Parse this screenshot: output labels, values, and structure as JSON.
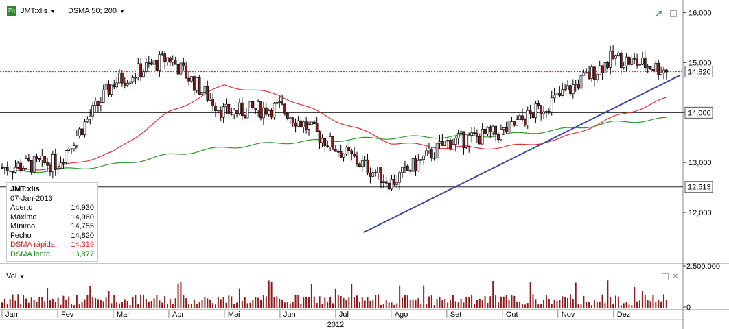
{
  "header": {
    "symbol": "JMT:xlis",
    "indicator": "DSMA 50; 200"
  },
  "info_box": {
    "title": "JMT:xlis",
    "date": "07-Jan-2013",
    "rows": [
      {
        "label": "Aberto",
        "value": "14,930"
      },
      {
        "label": "Máximo",
        "value": "14,960"
      },
      {
        "label": "Mínimo",
        "value": "14,755"
      },
      {
        "label": "Fecho",
        "value": "14,820"
      }
    ],
    "fast": {
      "label": "DSMA rápida",
      "value": "14,319"
    },
    "slow": {
      "label": "DSMA lenta",
      "value": "13,877"
    }
  },
  "volume_header": {
    "label": "Vol"
  },
  "colors": {
    "up": "#ffffff",
    "down": "#8b1a1a",
    "fast_ma": "#e03030",
    "slow_ma": "#2a9a2a",
    "trendline": "#3848a0",
    "last_price_line": "#c02020",
    "volume_bar": "#8b1a1a"
  },
  "chart_data": [
    {
      "type": "candlestick",
      "title": "",
      "y_range": [
        11,
        16.2
      ],
      "y_ticks": [
        "16,000",
        "15,000",
        "14,000",
        "13,000",
        "12,000"
      ],
      "y_tick_values": [
        16,
        15,
        14,
        13,
        12
      ],
      "x_months": [
        "Jan",
        "Fev",
        "Mar",
        "Abr",
        "Mai",
        "Jun",
        "Jul",
        "Ago",
        "Set",
        "Out",
        "Nov",
        "Dez"
      ],
      "x_year_label": "2012",
      "last_price": {
        "value": 14.82,
        "label": "14,820"
      },
      "horizontal_levels": [
        {
          "value": 14.0,
          "label": "14,000"
        },
        {
          "value": 12.513,
          "label": "12,513"
        }
      ],
      "trendline": {
        "from": {
          "month_index": 6.5,
          "value": 11.6
        },
        "to": {
          "month_index": 12.2,
          "value": 14.75
        }
      },
      "price_path_by_month": [
        12.9,
        13.0,
        14.6,
        15.1,
        14.0,
        14.1,
        13.3,
        12.6,
        13.4,
        13.6,
        14.3,
        15.1,
        14.85
      ],
      "fast_ma_by_month": [
        12.85,
        12.9,
        13.2,
        14.0,
        14.55,
        14.35,
        13.85,
        13.4,
        13.3,
        13.3,
        13.45,
        13.9,
        14.3
      ],
      "slow_ma_by_month": [
        12.8,
        12.85,
        12.95,
        13.15,
        13.3,
        13.4,
        13.45,
        13.5,
        13.52,
        13.55,
        13.65,
        13.8,
        13.88
      ]
    },
    {
      "type": "bar",
      "title": "",
      "y_range": [
        0,
        2500000
      ],
      "y_ticks": [
        "2.500.000",
        "0"
      ],
      "y_tick_values": [
        2500000,
        0
      ]
    }
  ]
}
